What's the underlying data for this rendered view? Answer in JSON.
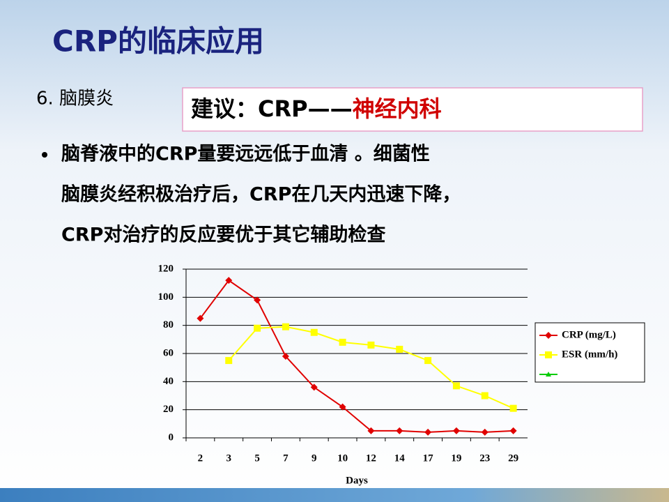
{
  "slide": {
    "title": "CRP的临床应用",
    "section": "6. 脑膜炎",
    "advice": {
      "lead": "建议：CRP——",
      "highlight": "神经内科"
    },
    "bullet_lines": [
      "脑脊液中的CRP量要远远低于血清 。细菌性",
      "脑膜炎经积极治疗后，CRP在几天内迅速下降，",
      "CRP对治疗的反应要优于其它辅助检查"
    ]
  },
  "chart_data": {
    "type": "line",
    "x_label": "Days",
    "categories": [
      "2",
      "3",
      "5",
      "7",
      "9",
      "10",
      "12",
      "14",
      "17",
      "19",
      "23",
      "29"
    ],
    "series": [
      {
        "name": "CRP (mg/L)",
        "color": "#e00000",
        "marker": "diamond",
        "values": [
          85,
          112,
          98,
          58,
          36,
          22,
          5,
          5,
          4,
          5,
          4,
          5
        ]
      },
      {
        "name": "ESR (mm/h)",
        "color": "#ffff00",
        "marker": "square",
        "values": [
          null,
          55,
          78,
          79,
          75,
          68,
          66,
          63,
          55,
          37,
          30,
          21
        ]
      },
      {
        "color": "#00cc00",
        "marker": "triangle",
        "values": [
          null,
          null,
          null,
          null,
          null,
          null,
          null,
          null,
          null,
          null,
          null,
          null
        ]
      }
    ],
    "ylim": [
      0,
      120
    ],
    "yticks": [
      0,
      20,
      40,
      60,
      80,
      100,
      120
    ],
    "grid": true,
    "legend": "right"
  }
}
